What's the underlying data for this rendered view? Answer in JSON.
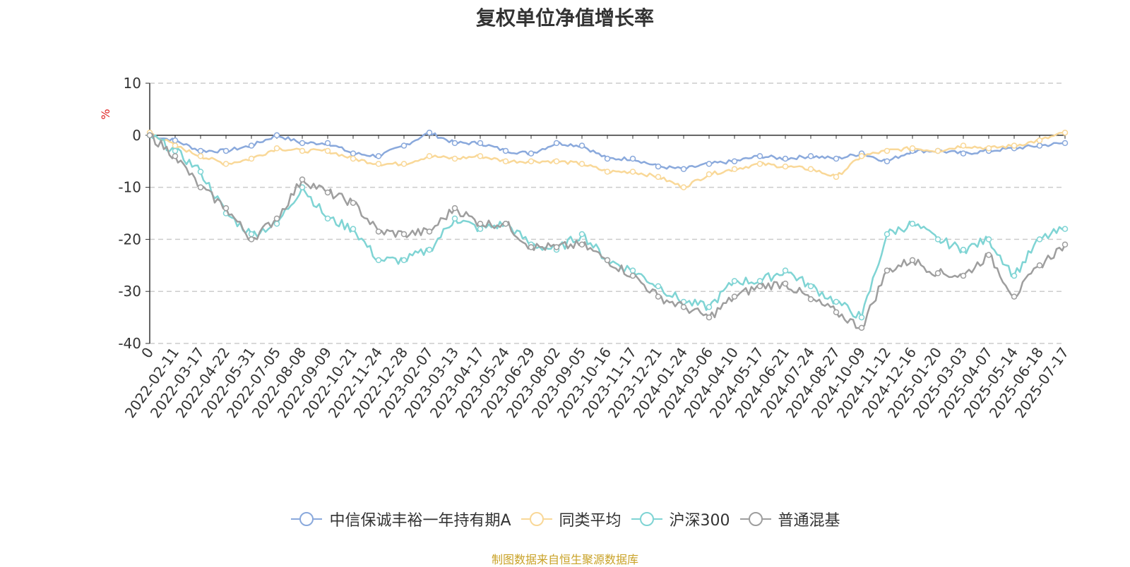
{
  "chart_data": {
    "type": "line",
    "title": "复权单位净值增长率",
    "ylabel": "%",
    "ylim": [
      -40,
      10
    ],
    "yticks": [
      "10",
      "0",
      "-10",
      "-20",
      "-30",
      "-40"
    ],
    "grid": true,
    "legend_position": "bottom",
    "x_tick_labels": [
      "0",
      "2022-02-11",
      "2022-03-17",
      "2022-04-22",
      "2022-05-31",
      "2022-07-05",
      "2022-08-08",
      "2022-09-09",
      "2022-10-21",
      "2022-11-24",
      "2022-12-28",
      "2023-02-07",
      "2023-03-13",
      "2023-04-17",
      "2023-05-24",
      "2023-06-29",
      "2023-08-02",
      "2023-09-05",
      "2023-10-16",
      "2023-11-17",
      "2023-12-21",
      "2024-01-24",
      "2024-03-06",
      "2024-04-10",
      "2024-05-17",
      "2024-06-21",
      "2024-07-24",
      "2024-08-27",
      "2024-10-09",
      "2024-11-12",
      "2024-12-16",
      "2025-01-20",
      "2025-03-03",
      "2025-04-07",
      "2025-05-14",
      "2025-06-18",
      "2025-07-17"
    ],
    "x": [
      0,
      1,
      2,
      3,
      4,
      5,
      6,
      7,
      8,
      9,
      10,
      11,
      12,
      13,
      14,
      15,
      16,
      17,
      18,
      19,
      20,
      21,
      22,
      23,
      24,
      25,
      26,
      27,
      28,
      29,
      30,
      31,
      32,
      33,
      34,
      35,
      36
    ],
    "series": [
      {
        "name": "中信保诚丰裕一年持有期A",
        "color": "#8aa9dc",
        "values": [
          0,
          -1,
          -3,
          -3,
          -2,
          0,
          -1.5,
          -1.5,
          -3.5,
          -4,
          -2,
          0.5,
          -1.5,
          -1.5,
          -3,
          -3.5,
          -1.5,
          -2,
          -4.5,
          -4.5,
          -6,
          -6.5,
          -5.5,
          -5,
          -4,
          -4.5,
          -4,
          -4.5,
          -3.5,
          -5,
          -3,
          -3,
          -3.5,
          -3,
          -2.5,
          -2,
          -1.5
        ]
      },
      {
        "name": "同类平均",
        "color": "#f9d898",
        "values": [
          0.5,
          -2,
          -4,
          -5.5,
          -4.5,
          -2.5,
          -3,
          -3,
          -4.5,
          -5.5,
          -5.5,
          -4,
          -4.5,
          -4,
          -5,
          -5,
          -5,
          -5.5,
          -7,
          -7,
          -8,
          -10,
          -7.5,
          -6.5,
          -5.5,
          -6,
          -6.5,
          -8,
          -4,
          -3,
          -2.5,
          -3,
          -2,
          -2.5,
          -2,
          -1,
          0.5
        ]
      },
      {
        "name": "沪深300",
        "color": "#7fd4d4",
        "values": [
          0,
          -3,
          -7,
          -15,
          -19,
          -17,
          -10,
          -16,
          -18,
          -24,
          -24,
          -22,
          -16,
          -18,
          -17,
          -21,
          -22,
          -19,
          -24,
          -26,
          -29,
          -32,
          -33,
          -28,
          -28,
          -26,
          -29,
          -32,
          -35,
          -19,
          -17,
          -20,
          -22,
          -20,
          -27,
          -20,
          -18
        ]
      },
      {
        "name": "普通混基",
        "color": "#9e9e9e",
        "values": [
          0,
          -4,
          -10,
          -14,
          -20,
          -16,
          -8.5,
          -11,
          -13,
          -18.5,
          -19,
          -18.5,
          -14,
          -17,
          -17,
          -21.5,
          -21.5,
          -21,
          -24,
          -27,
          -31,
          -33,
          -35,
          -31,
          -29,
          -28.5,
          -31.5,
          -34,
          -37,
          -26,
          -24,
          -26.5,
          -27,
          -23,
          -31,
          -25,
          -21
        ]
      }
    ]
  },
  "source_text": "制图数据来自恒生聚源数据库"
}
